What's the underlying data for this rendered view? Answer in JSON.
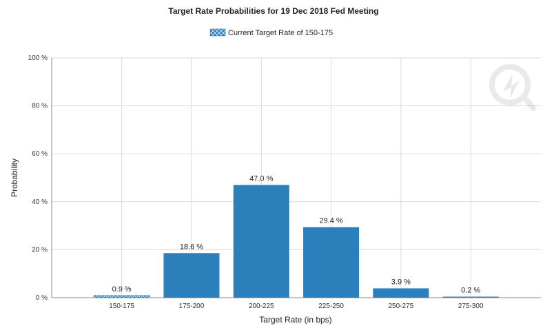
{
  "chart_data": {
    "type": "bar",
    "title": "Target Rate Probabilities for 19 Dec 2018 Fed Meeting",
    "legend": {
      "label": "Current Target Rate of 150-175",
      "placement": "top-center"
    },
    "categories": [
      "150-175",
      "175-200",
      "200-225",
      "225-250",
      "250-275",
      "275-300"
    ],
    "values": [
      0.9,
      18.6,
      47.0,
      29.4,
      3.9,
      0.2
    ],
    "data_labels": [
      "0.9 %",
      "18.6 %",
      "47.0 %",
      "29.4 %",
      "3.9 %",
      "0.2 %"
    ],
    "highlight_category": "150-175",
    "xlabel": "Target Rate (in bps)",
    "ylabel": "Probability",
    "ylim": [
      0,
      100
    ],
    "yticks": [
      0,
      20,
      40,
      60,
      80,
      100
    ],
    "ytick_labels": [
      "0 %",
      "20 %",
      "40 %",
      "60 %",
      "80 %",
      "100 %"
    ],
    "grid": true,
    "colors": {
      "bar": "#2b7fbb",
      "highlight_bar": "#2b7fbb",
      "grid": "#d9d9d9",
      "axis": "#888888"
    }
  }
}
